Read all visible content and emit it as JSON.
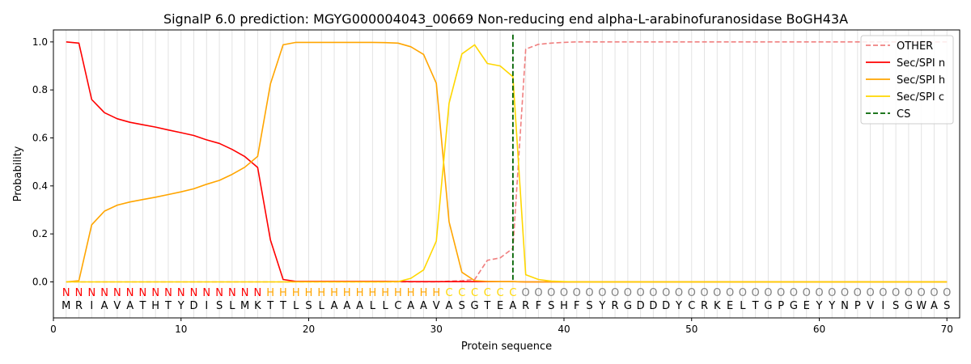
{
  "chart_data": {
    "type": "line",
    "title": "SignalP 6.0 prediction: MGYG000004043_00669 Non-reducing end alpha-L-arabinofuranosidase BoGH43A",
    "xlabel": "Protein sequence",
    "ylabel": "Probability",
    "xlim": [
      0,
      71
    ],
    "ylim": [
      -0.15,
      1.05
    ],
    "xticks": [
      0,
      10,
      20,
      30,
      40,
      50,
      60,
      70
    ],
    "yticks": [
      0.0,
      0.2,
      0.4,
      0.6,
      0.8,
      1.0
    ],
    "grid": "vertical lines at each residue",
    "legend_position": "top-right",
    "x": [
      1,
      2,
      3,
      4,
      5,
      6,
      7,
      8,
      9,
      10,
      11,
      12,
      13,
      14,
      15,
      16,
      17,
      18,
      19,
      20,
      21,
      22,
      23,
      24,
      25,
      26,
      27,
      28,
      29,
      30,
      31,
      32,
      33,
      34,
      35,
      36,
      37,
      38,
      39,
      40,
      41,
      42,
      43,
      44,
      45,
      46,
      47,
      48,
      49,
      50,
      51,
      52,
      53,
      54,
      55,
      56,
      57,
      58,
      59,
      60,
      61,
      62,
      63,
      64,
      65,
      66,
      67,
      68,
      69,
      70
    ],
    "sequence": [
      "M",
      "R",
      "I",
      "A",
      "V",
      "A",
      "T",
      "H",
      "T",
      "Y",
      "D",
      "I",
      "S",
      "L",
      "M",
      "K",
      "T",
      "T",
      "L",
      "S",
      "L",
      "A",
      "A",
      "A",
      "L",
      "L",
      "C",
      "A",
      "A",
      "V",
      "A",
      "S",
      "G",
      "T",
      "E",
      "A",
      "R",
      "F",
      "S",
      "H",
      "F",
      "S",
      "Y",
      "R",
      "G",
      "D",
      "D",
      "D",
      "Y",
      "C",
      "R",
      "K",
      "E",
      "L",
      "T",
      "G",
      "P",
      "G",
      "E",
      "Y",
      "Y",
      "N",
      "P",
      "V",
      "I",
      "S",
      "G",
      "W",
      "A",
      "S"
    ],
    "labels": [
      "N",
      "N",
      "N",
      "N",
      "N",
      "N",
      "N",
      "N",
      "N",
      "N",
      "N",
      "N",
      "N",
      "N",
      "N",
      "N",
      "H",
      "H",
      "H",
      "H",
      "H",
      "H",
      "H",
      "H",
      "H",
      "H",
      "H",
      "H",
      "H",
      "H",
      "C",
      "C",
      "C",
      "C",
      "C",
      "C",
      "O",
      "O",
      "O",
      "O",
      "O",
      "O",
      "O",
      "O",
      "O",
      "O",
      "O",
      "O",
      "O",
      "O",
      "O",
      "O",
      "O",
      "O",
      "O",
      "O",
      "O",
      "O",
      "O",
      "O",
      "O",
      "O",
      "O",
      "O",
      "O",
      "O",
      "O",
      "O",
      "O",
      "O"
    ],
    "label_colors": {
      "N": "#ff0000",
      "H": "#ffa500",
      "C": "#ffd700",
      "O": "#808080"
    },
    "series": [
      {
        "name": "OTHER",
        "color": "#f08080",
        "dash": true,
        "values": [
          0,
          0,
          0,
          0,
          0,
          0,
          0,
          0,
          0,
          0,
          0,
          0,
          0,
          0,
          0,
          0,
          0,
          0,
          0,
          0,
          0,
          0,
          0,
          0,
          0,
          0,
          0,
          0,
          0,
          0,
          0.003,
          0.005,
          0.01,
          0.09,
          0.1,
          0.14,
          0.97,
          0.99,
          0.995,
          0.998,
          1,
          1,
          1,
          1,
          1,
          1,
          1,
          1,
          1,
          1,
          1,
          1,
          1,
          1,
          1,
          1,
          1,
          1,
          1,
          1,
          1,
          1,
          1,
          1,
          1,
          1,
          1,
          1,
          1,
          1
        ]
      },
      {
        "name": "Sec/SPI n",
        "color": "#ff0000",
        "dash": false,
        "values": [
          1.0,
          0.995,
          0.76,
          0.705,
          0.68,
          0.665,
          0.655,
          0.645,
          0.633,
          0.622,
          0.61,
          0.592,
          0.577,
          0.552,
          0.522,
          0.477,
          0.175,
          0.01,
          0.002,
          0.002,
          0.002,
          0.002,
          0.002,
          0.002,
          0.002,
          0.002,
          0.002,
          0.001,
          0.001,
          0.001,
          0.001,
          0.001,
          0.001,
          0.001,
          0.001,
          0.001,
          0,
          0,
          0,
          0,
          0,
          0,
          0,
          0,
          0,
          0,
          0,
          0,
          0,
          0,
          0,
          0,
          0,
          0,
          0,
          0,
          0,
          0,
          0,
          0,
          0,
          0,
          0,
          0,
          0,
          0,
          0,
          0,
          0,
          0
        ]
      },
      {
        "name": "Sec/SPI h",
        "color": "#ffa500",
        "dash": false,
        "values": [
          0,
          0.005,
          0.238,
          0.295,
          0.32,
          0.333,
          0.343,
          0.353,
          0.364,
          0.375,
          0.388,
          0.407,
          0.423,
          0.448,
          0.478,
          0.523,
          0.825,
          0.988,
          0.998,
          0.998,
          0.998,
          0.998,
          0.998,
          0.998,
          0.998,
          0.997,
          0.995,
          0.98,
          0.948,
          0.828,
          0.25,
          0.04,
          0.005,
          0.002,
          0.001,
          0.001,
          0,
          0,
          0,
          0,
          0,
          0,
          0,
          0,
          0,
          0,
          0,
          0,
          0,
          0,
          0,
          0,
          0,
          0,
          0,
          0,
          0,
          0,
          0,
          0,
          0,
          0,
          0,
          0,
          0,
          0,
          0,
          0,
          0,
          0
        ]
      },
      {
        "name": "Sec/SPI c",
        "color": "#ffd700",
        "dash": false,
        "values": [
          0,
          0,
          0,
          0,
          0,
          0,
          0,
          0,
          0,
          0,
          0,
          0,
          0,
          0,
          0,
          0,
          0,
          0,
          0,
          0,
          0,
          0,
          0,
          0,
          0,
          0,
          0.001,
          0.015,
          0.05,
          0.17,
          0.745,
          0.95,
          0.988,
          0.91,
          0.9,
          0.855,
          0.03,
          0.01,
          0.003,
          0.001,
          0,
          0,
          0,
          0,
          0,
          0,
          0,
          0,
          0,
          0,
          0,
          0,
          0,
          0,
          0,
          0,
          0,
          0,
          0,
          0,
          0,
          0,
          0,
          0,
          0,
          0,
          0,
          0,
          0,
          0
        ]
      }
    ],
    "cs": {
      "name": "CS",
      "x": 36,
      "color": "#006400"
    }
  }
}
